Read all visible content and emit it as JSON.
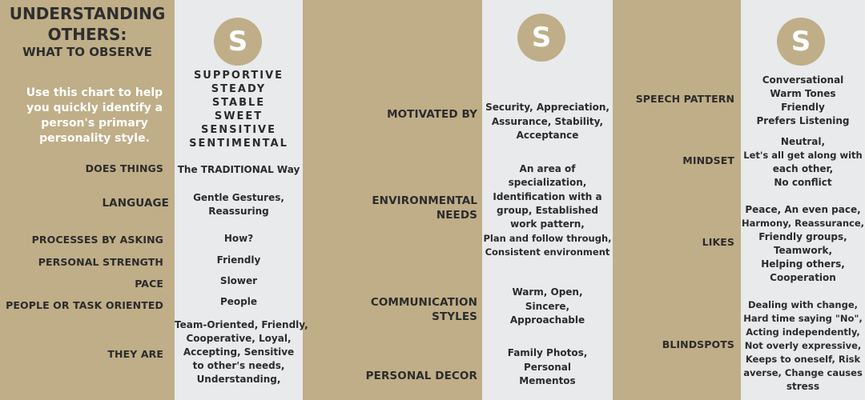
{
  "header": {
    "title_line1": "UNDERSTANDING",
    "title_line2": "OTHERS:",
    "subtitle": "WHAT TO OBSERVE",
    "intro": [
      "Use this chart to help",
      "you quickly identify a",
      "person's primary",
      "personality style."
    ]
  },
  "badge_letter": "S",
  "traits": [
    "SUPPORTIVE",
    "STEADY",
    "STABLE",
    "SWEET",
    "SENSITIVE",
    "SENTIMENTAL"
  ],
  "column1": {
    "rows": [
      {
        "label": "DOES THINGS",
        "value": [
          "The TRADITIONAL Way"
        ]
      },
      {
        "label": "LANGUAGE",
        "value": [
          "Gentle Gestures,",
          "Reassuring"
        ]
      },
      {
        "label": "PROCESSES BY ASKING",
        "value": [
          "How?"
        ]
      },
      {
        "label": "PERSONAL STRENGTH",
        "value": [
          "Friendly"
        ]
      },
      {
        "label": "PACE",
        "value": [
          "Slower"
        ]
      },
      {
        "label": "PEOPLE OR TASK ORIENTED",
        "value": [
          "People"
        ]
      },
      {
        "label": "THEY ARE",
        "value": [
          "Team-Oriented, Friendly,",
          "Cooperative, Loyal,",
          "Accepting, Sensitive",
          "to other's needs,",
          "Understanding,"
        ]
      }
    ]
  },
  "column2": {
    "rows": [
      {
        "label": [
          "MOTIVATED BY"
        ],
        "value": [
          "Security, Appreciation,",
          "Assurance, Stability,",
          "Acceptance"
        ]
      },
      {
        "label": [
          "ENVIRONMENTAL",
          "NEEDS"
        ],
        "value": [
          "An area of",
          "specialization,",
          "Identification with a",
          "group, Established",
          "work pattern,",
          "Plan and follow through,",
          "Consistent environment"
        ]
      },
      {
        "label": [
          "COMMUNICATION",
          "STYLES"
        ],
        "value": [
          "Warm, Open,",
          "Sincere,",
          "Approachable"
        ]
      },
      {
        "label": [
          "PERSONAL DECOR"
        ],
        "value": [
          "Family Photos,",
          "Personal",
          "Mementos"
        ]
      }
    ]
  },
  "column3": {
    "rows": [
      {
        "label": "SPEECH PATTERN",
        "value": [
          "Conversational",
          "Warm Tones",
          "Friendly",
          "Prefers Listening"
        ]
      },
      {
        "label": "MINDSET",
        "value": [
          "Neutral,",
          "Let's all get along with",
          "each other,",
          "No conflict"
        ]
      },
      {
        "label": "LIKES",
        "value": [
          "Peace, An even pace,",
          "Harmony, Reassurance,",
          "Friendly groups,",
          "Teamwork,",
          "Helping others,",
          "Cooperation"
        ]
      },
      {
        "label": "BLINDSPOTS",
        "value": [
          "Dealing with change,",
          "Hard time saying \"No\",",
          "Acting independently,",
          "Not overly expressive,",
          "Keeps to oneself, Risk",
          "averse, Change causes",
          "stress"
        ]
      }
    ]
  }
}
